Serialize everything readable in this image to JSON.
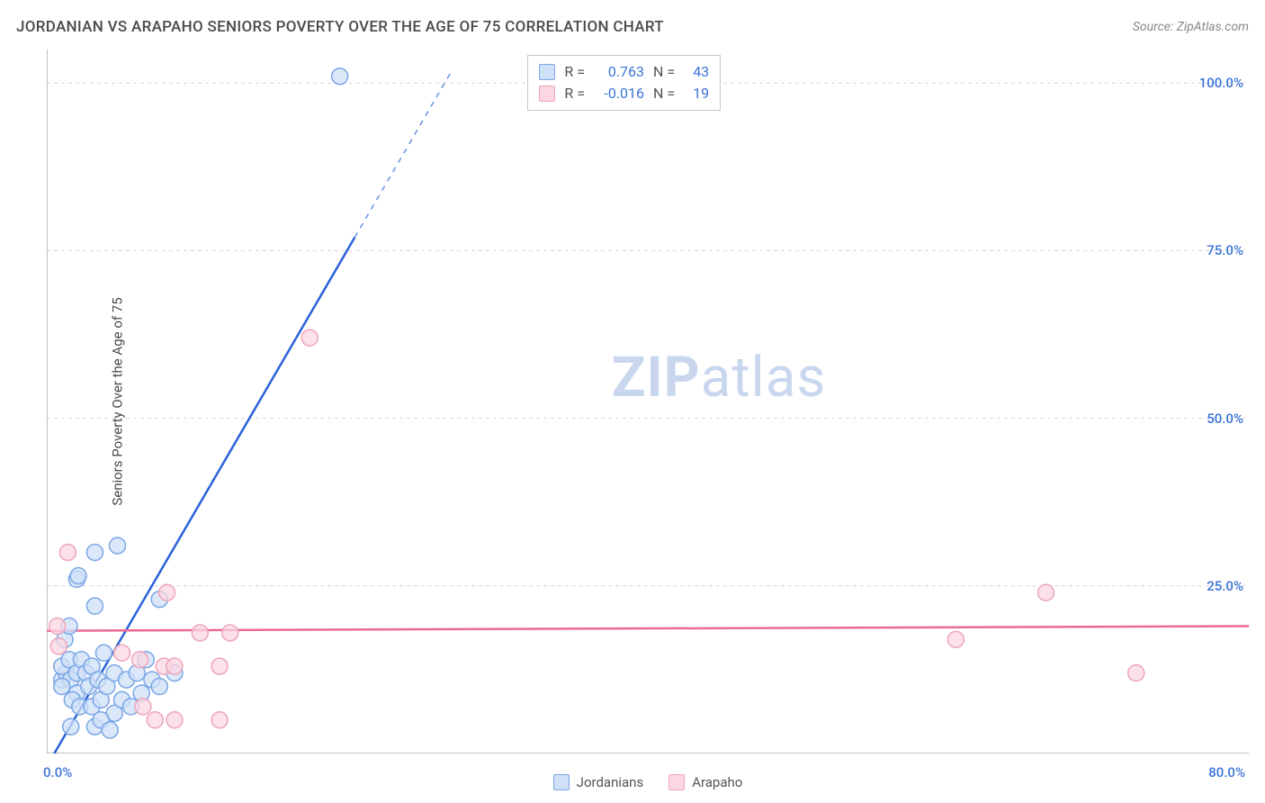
{
  "title": "JORDANIAN VS ARAPAHO SENIORS POVERTY OVER THE AGE OF 75 CORRELATION CHART",
  "source": "Source: ZipAtlas.com",
  "y_axis_label": "Seniors Poverty Over the Age of 75",
  "watermark": {
    "zip": "ZIP",
    "atlas": "atlas",
    "color": "#c9d7ee"
  },
  "chart": {
    "type": "scatter",
    "xlim": [
      0,
      80
    ],
    "ylim": [
      0,
      105
    ],
    "x_zero_label": "0.0%",
    "x_max_label": "80.0%",
    "x_ticks": [
      0,
      20,
      40,
      60,
      80
    ],
    "y_ticks": [
      25,
      50,
      75,
      100
    ],
    "y_tick_labels": [
      "25.0%",
      "50.0%",
      "75.0%",
      "100.0%"
    ],
    "grid_color": "#d6d6d6",
    "grid_dash": "4 4",
    "axis_color": "#9a9a9a",
    "tick_color": "#b0b0b0",
    "label_color_x0": "#3b74d8",
    "label_color_xmax": "#3b74d8",
    "ytick_label_color": "#3b74d8",
    "background": "#ffffff",
    "marker_radius": 9,
    "marker_stroke_width": 1.5,
    "line_width": 2.5,
    "series": [
      {
        "name": "Jordanians",
        "fill": "#cfe0f7",
        "stroke": "#7aa6e6",
        "line_color": "#2b62d9",
        "dash_color": "#6f98e4",
        "line": {
          "x1": 0.5,
          "y1": 0,
          "x2": 20.5,
          "y2": 77
        },
        "dash_extension": {
          "x1": 20.5,
          "y1": 77,
          "x2": 27,
          "y2": 102
        },
        "points": [
          [
            1.0,
            11
          ],
          [
            1.3,
            12
          ],
          [
            1.6,
            11
          ],
          [
            1.0,
            13
          ],
          [
            1.5,
            14
          ],
          [
            2.0,
            12
          ],
          [
            2.3,
            14
          ],
          [
            2.0,
            9
          ],
          [
            2.6,
            12
          ],
          [
            2.8,
            10
          ],
          [
            3.0,
            13
          ],
          [
            3.4,
            11
          ],
          [
            3.8,
            15
          ],
          [
            1.0,
            10
          ],
          [
            1.7,
            8
          ],
          [
            2.2,
            7
          ],
          [
            3.0,
            7
          ],
          [
            3.6,
            8
          ],
          [
            4.0,
            10
          ],
          [
            4.5,
            12
          ],
          [
            4.5,
            6
          ],
          [
            5.0,
            8
          ],
          [
            5.3,
            11
          ],
          [
            5.6,
            7
          ],
          [
            6.0,
            12
          ],
          [
            6.3,
            9
          ],
          [
            6.6,
            14
          ],
          [
            7.0,
            11
          ],
          [
            7.5,
            10
          ],
          [
            8.5,
            12
          ],
          [
            1.2,
            17
          ],
          [
            1.5,
            19
          ],
          [
            2.0,
            26
          ],
          [
            2.1,
            26.5
          ],
          [
            3.2,
            22
          ],
          [
            3.2,
            30
          ],
          [
            4.7,
            31
          ],
          [
            7.5,
            23
          ],
          [
            1.6,
            4
          ],
          [
            3.2,
            4
          ],
          [
            3.6,
            5
          ],
          [
            4.2,
            3.5
          ],
          [
            19.5,
            101
          ]
        ]
      },
      {
        "name": "Arapaho",
        "fill": "#fbd7e1",
        "stroke": "#eda5ba",
        "line_color": "#e86b94",
        "line": {
          "x1": 0,
          "y1": 18.3,
          "x2": 80,
          "y2": 19.0
        },
        "points": [
          [
            0.7,
            19
          ],
          [
            0.8,
            16
          ],
          [
            1.4,
            30
          ],
          [
            5.0,
            15
          ],
          [
            6.2,
            14
          ],
          [
            7.8,
            13
          ],
          [
            8.0,
            24
          ],
          [
            8.5,
            13
          ],
          [
            10.2,
            18
          ],
          [
            11.5,
            13
          ],
          [
            12.2,
            18
          ],
          [
            7.2,
            5
          ],
          [
            6.4,
            7
          ],
          [
            8.5,
            5
          ],
          [
            11.5,
            5
          ],
          [
            17.5,
            62
          ],
          [
            60.5,
            17
          ],
          [
            66.5,
            24
          ],
          [
            72.5,
            12
          ]
        ]
      }
    ]
  },
  "top_legend": {
    "rows": [
      {
        "swatch_fill": "#cfe0f7",
        "swatch_stroke": "#7aa6e6",
        "r": "0.763",
        "n": "43",
        "val_color": "#3b74d8"
      },
      {
        "swatch_fill": "#fbd7e1",
        "swatch_stroke": "#eda5ba",
        "r": "-0.016",
        "n": "19",
        "val_color": "#3b74d8"
      }
    ]
  },
  "bottom_legend": [
    {
      "label": "Jordanians",
      "fill": "#cfe0f7",
      "stroke": "#7aa6e6"
    },
    {
      "label": "Arapaho",
      "fill": "#fbd7e1",
      "stroke": "#eda5ba"
    }
  ]
}
